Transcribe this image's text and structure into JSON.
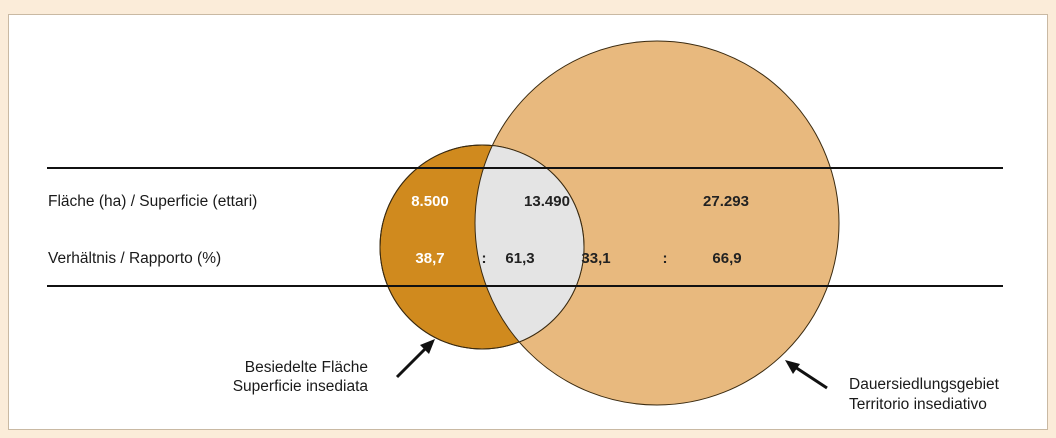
{
  "colors": {
    "background": "#fbecd9",
    "settled_area": "#d08a1e",
    "overlap": "#e4e4e4",
    "permanent_settlement_area": "#e8b97e"
  },
  "rows": {
    "area_label": "Fläche (ha) / Superficie (ettari)",
    "ratio_label": "Verhältnis / Rapporto (%)"
  },
  "values": {
    "settled_only": "8.500",
    "overlap": "13.490",
    "permanent_only": "27.293",
    "ratio_a1": "38,7",
    "sep1": ":",
    "ratio_a2": "61,3",
    "ratio_b1": "33,1",
    "sep2": ":",
    "ratio_b2": "66,9"
  },
  "callouts": {
    "settled_de": "Besiedelte Fläche",
    "settled_it": "Superficie insediata",
    "permanent_de": "Dauersiedlungsgebiet",
    "permanent_it": "Territorio insediativo"
  }
}
